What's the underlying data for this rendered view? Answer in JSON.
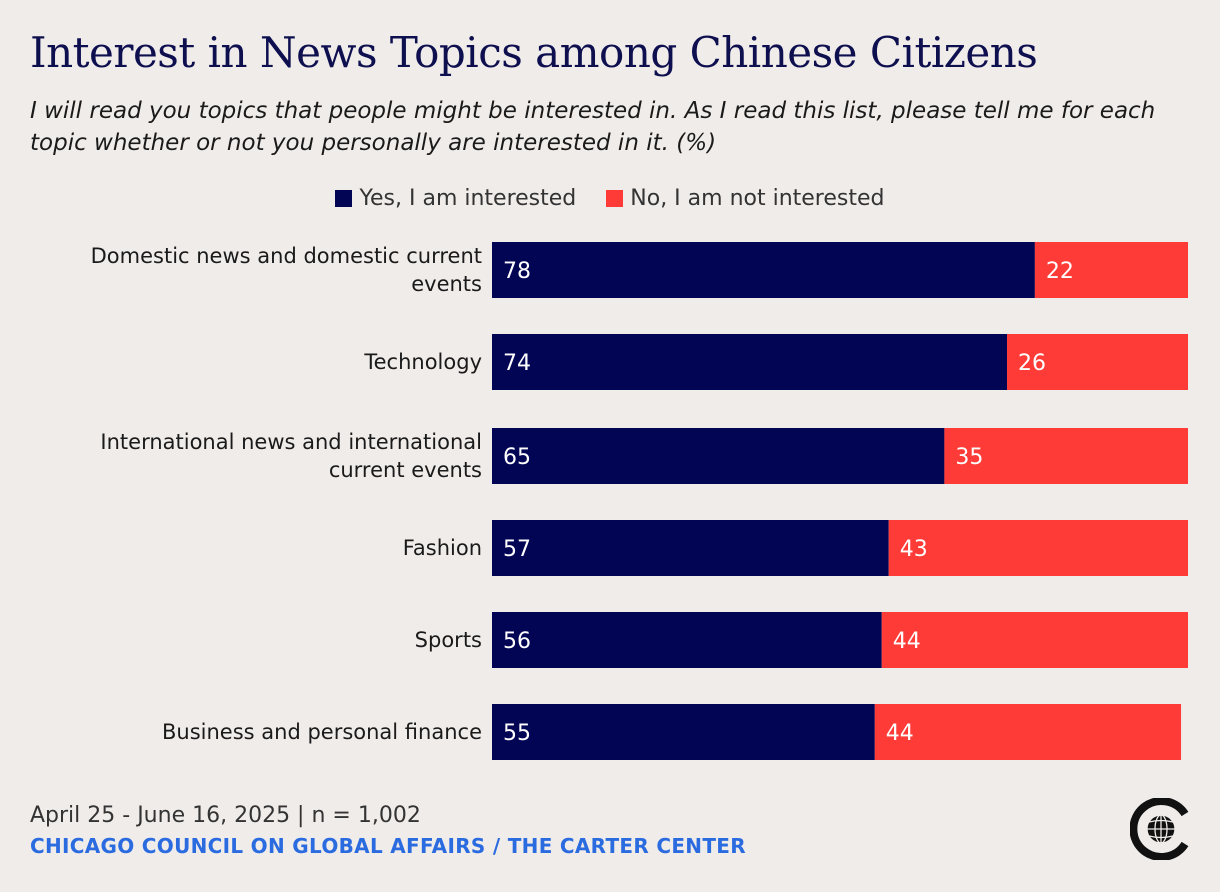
{
  "title": "Interest in News Topics among Chinese Citizens",
  "subtitle": "I will read you topics that people might be interested in. As I read this list, please tell me for each topic whether or not you personally are interested in it. (%)",
  "legend": {
    "yes": "Yes, I am interested",
    "no": "No, I am not interested"
  },
  "footer": {
    "date": "April 25 - June 16, 2025 | n = 1,002",
    "source": "CHICAGO COUNCIL ON GLOBAL AFFAIRS / THE CARTER CENTER"
  },
  "colors": {
    "yes": "#020454",
    "no": "#fe3b36",
    "title": "#0e0f4f",
    "source": "#2a6be0",
    "background": "#f0ecea"
  },
  "logo_icon": "globe-c-logo-icon",
  "chart_data": {
    "type": "bar",
    "orientation": "horizontal",
    "stacked": true,
    "categories": [
      "Domestic news and domestic current events",
      "Technology",
      "International news and international current events",
      "Fashion",
      "Sports",
      "Business and personal finance"
    ],
    "series": [
      {
        "name": "Yes, I am interested",
        "values": [
          78,
          74,
          65,
          57,
          56,
          55
        ]
      },
      {
        "name": "No, I am not interested",
        "values": [
          22,
          26,
          35,
          43,
          44,
          44
        ]
      }
    ],
    "xlim": [
      0,
      100
    ],
    "grid": false,
    "legend_position": "top-center"
  }
}
